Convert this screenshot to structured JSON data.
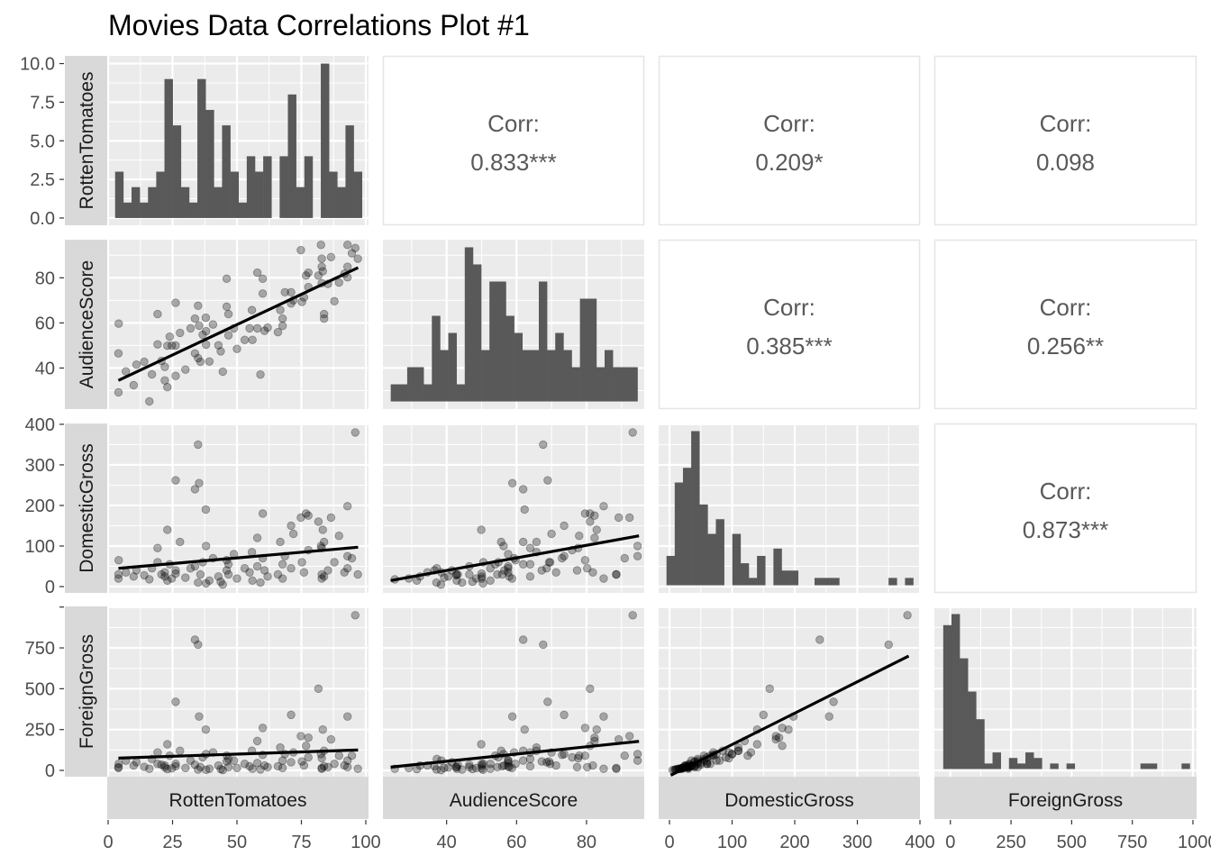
{
  "chart_data": {
    "type": "scatter-matrix",
    "title": "Movies Data Correlations Plot #1",
    "variables": [
      "RottenTomatoes",
      "AudienceScore",
      "DomesticGross",
      "ForeignGross"
    ],
    "axes": {
      "RottenTomatoes": {
        "x_range": [
          -0.35,
          101.05
        ],
        "ticks": [
          0,
          25,
          50,
          75,
          100
        ],
        "tick_labels": [
          "0",
          "25",
          "50",
          "75",
          "100"
        ]
      },
      "AudienceScore": {
        "x_range": [
          21.8,
          96.5
        ],
        "y_range": [
          21.8,
          96.9
        ],
        "ticks": [
          40,
          60,
          80
        ],
        "tick_labels": [
          "40",
          "60",
          "80"
        ]
      },
      "DomesticGross": {
        "x_range": [
          -17.3,
          400
        ],
        "y_range": [
          -15.5,
          402
        ],
        "ticks": [
          0,
          100,
          200,
          300,
          400
        ],
        "tick_labels": [
          "0",
          "100",
          "200",
          "300",
          "400"
        ]
      },
      "ForeignGross": {
        "x_range": [
          -66,
          1015
        ],
        "y_range": [
          -38.6,
          1004
        ],
        "ticks": [
          0,
          250,
          500,
          750,
          1000
        ],
        "tick_labels": [
          "0",
          "250",
          "500",
          "750",
          "1000"
        ],
        "y_tick_labels": [
          "0",
          "250",
          "500",
          "750"
        ]
      }
    },
    "count_axis": {
      "range": [
        -0.47,
        10.5
      ],
      "ticks": [
        0,
        2.5,
        5,
        7.5,
        10
      ],
      "tick_labels": [
        "0.0",
        "2.5",
        "5.0",
        "7.5",
        "10.0"
      ]
    },
    "histograms": [
      {
        "variable": "RottenTomatoes",
        "bin_range": [
          4.3,
          96.9
        ],
        "counts": [
          3,
          1,
          2,
          1,
          2,
          3,
          9,
          6,
          2,
          1,
          9,
          7,
          2,
          6,
          3,
          1,
          4,
          3,
          4,
          0,
          4,
          8,
          2,
          4,
          0,
          10,
          3,
          2,
          6,
          3
        ]
      },
      {
        "variable": "AudienceScore",
        "bin_range": [
          25.2,
          93.4
        ],
        "counts": [
          1,
          1,
          2,
          2,
          1,
          5,
          3,
          4,
          1,
          9,
          8,
          3,
          7,
          7,
          5,
          4,
          3,
          3,
          7,
          3,
          4,
          3,
          2,
          6,
          6,
          2,
          3,
          2,
          2,
          2
        ]
      },
      {
        "variable": "DomesticGross",
        "bin_range": [
          1.8,
          382.7
        ],
        "counts": [
          4,
          14,
          16,
          21,
          11,
          7,
          9,
          0,
          7,
          3,
          1,
          4,
          0,
          5,
          2,
          2,
          0,
          0,
          1,
          1,
          1,
          0,
          0,
          0,
          0,
          0,
          0,
          1,
          0,
          1
        ]
      },
      {
        "variable": "ForeignGross",
        "bin_range": [
          -12.6,
          970
        ],
        "counts": [
          26,
          28,
          20,
          14,
          9,
          1,
          3,
          0,
          2,
          1,
          3,
          2,
          0,
          1,
          0,
          1,
          0,
          0,
          0,
          0,
          0,
          0,
          0,
          0,
          1,
          1,
          0,
          0,
          0,
          1
        ]
      }
    ],
    "correlations": [
      {
        "row": 0,
        "col": 1,
        "label": "Corr:",
        "value": "0.833***"
      },
      {
        "row": 0,
        "col": 2,
        "label": "Corr:",
        "value": "0.209*"
      },
      {
        "row": 0,
        "col": 3,
        "label": "Corr:",
        "value": "0.098"
      },
      {
        "row": 1,
        "col": 2,
        "label": "Corr:",
        "value": "0.385***"
      },
      {
        "row": 1,
        "col": 3,
        "label": "Corr:",
        "value": "0.256**"
      },
      {
        "row": 2,
        "col": 3,
        "label": "Corr:",
        "value": "0.873***"
      }
    ],
    "fits": [
      {
        "x": "RottenTomatoes",
        "y": "AudienceScore",
        "from": [
          4,
          34.5
        ],
        "to": [
          97,
          84.5
        ]
      },
      {
        "x": "RottenTomatoes",
        "y": "DomesticGross",
        "from": [
          4,
          45
        ],
        "to": [
          97,
          97
        ]
      },
      {
        "x": "RottenTomatoes",
        "y": "ForeignGross",
        "from": [
          4,
          75
        ],
        "to": [
          97,
          125
        ]
      },
      {
        "x": "AudienceScore",
        "y": "DomesticGross",
        "from": [
          24,
          15
        ],
        "to": [
          95,
          125
        ]
      },
      {
        "x": "AudienceScore",
        "y": "ForeignGross",
        "from": [
          24,
          20
        ],
        "to": [
          95,
          178
        ]
      },
      {
        "x": "DomesticGross",
        "y": "ForeignGross",
        "from": [
          2,
          -30
        ],
        "to": [
          382,
          700
        ]
      }
    ],
    "points": {
      "columns": [
        "RottenTomatoes",
        "AudienceScore",
        "DomesticGross",
        "ForeignGross"
      ],
      "rows": [
        [
          4.1,
          59.7,
          65,
          40
        ],
        [
          4,
          46.5,
          30,
          20
        ],
        [
          4,
          29.2,
          20,
          15
        ],
        [
          6.9,
          38.5,
          35,
          60
        ],
        [
          9.9,
          32.4,
          25,
          30
        ],
        [
          11,
          41.5,
          40,
          50
        ],
        [
          14,
          42.8,
          28,
          22
        ],
        [
          16,
          25.2,
          18,
          10
        ],
        [
          17,
          37.2,
          45,
          70
        ],
        [
          19.2,
          63.9,
          95,
          110
        ],
        [
          19.2,
          50.5,
          60,
          40
        ],
        [
          20.7,
          43.2,
          30,
          35
        ],
        [
          22,
          40.5,
          25,
          18
        ],
        [
          22,
          34.5,
          35,
          30
        ],
        [
          23,
          31.5,
          15,
          8
        ],
        [
          23,
          49.9,
          140,
          160
        ],
        [
          23.9,
          53.9,
          55,
          90
        ],
        [
          24.7,
          50,
          20,
          12
        ],
        [
          26.2,
          68.9,
          262,
          420
        ],
        [
          26.2,
          36.5,
          40,
          25
        ],
        [
          26.2,
          50,
          32,
          40
        ],
        [
          27.9,
          55.6,
          110,
          120
        ],
        [
          30,
          39.3,
          22,
          15
        ],
        [
          32,
          57.6,
          45,
          60
        ],
        [
          33.7,
          61.9,
          240,
          800
        ],
        [
          33.7,
          46.5,
          50,
          35
        ],
        [
          34.9,
          67.6,
          350,
          770
        ],
        [
          34.9,
          44.4,
          10,
          5
        ],
        [
          35.8,
          42.8,
          30,
          20
        ],
        [
          35.3,
          58.8,
          255,
          330
        ],
        [
          36.7,
          54.8,
          60,
          80
        ],
        [
          37.9,
          62.3,
          190,
          250
        ],
        [
          38,
          56.3,
          100,
          100
        ],
        [
          38,
          50.4,
          8,
          4
        ],
        [
          39.3,
          42.9,
          15,
          10
        ],
        [
          40.7,
          59.3,
          70,
          110
        ],
        [
          42.8,
          50.1,
          25,
          30
        ],
        [
          43.7,
          47.4,
          12,
          8
        ],
        [
          44.5,
          38.4,
          5,
          2
        ],
        [
          46,
          79.6,
          65,
          90
        ],
        [
          46,
          67.2,
          40,
          55
        ],
        [
          46.7,
          63.9,
          55,
          70
        ],
        [
          46.7,
          54.5,
          30,
          20
        ],
        [
          48.8,
          57.6,
          80,
          60
        ],
        [
          50,
          48.5,
          20,
          15
        ],
        [
          53,
          52.5,
          45,
          40
        ],
        [
          54.9,
          57.6,
          35,
          25
        ],
        [
          55.8,
          65.7,
          85,
          120
        ],
        [
          56,
          52.5,
          15,
          10
        ],
        [
          57.9,
          82.3,
          120,
          180
        ],
        [
          57.9,
          57.6,
          50,
          45
        ],
        [
          59.1,
          37.1,
          10,
          6
        ],
        [
          60,
          79.6,
          180,
          260
        ],
        [
          60,
          73,
          70,
          95
        ],
        [
          60.7,
          56.5,
          40,
          30
        ],
        [
          61.9,
          57.9,
          25,
          20
        ],
        [
          65.9,
          55.9,
          30,
          25
        ],
        [
          66.8,
          65.7,
          110,
          140
        ],
        [
          67.7,
          61.9,
          55,
          60
        ],
        [
          67.7,
          58.7,
          20,
          15
        ],
        [
          68.6,
          73.6,
          75,
          100
        ],
        [
          71,
          73.6,
          150,
          340
        ],
        [
          71,
          68.6,
          45,
          50
        ],
        [
          71.9,
          70,
          130,
          110
        ],
        [
          74.8,
          92.3,
          170,
          210
        ],
        [
          75.2,
          69.3,
          60,
          55
        ],
        [
          76,
          71.3,
          35,
          30
        ],
        [
          76.8,
          81,
          180,
          150
        ],
        [
          77.7,
          82.3,
          175,
          200
        ],
        [
          77.7,
          75.9,
          90,
          80
        ],
        [
          81.6,
          81,
          160,
          500
        ],
        [
          82.6,
          94.6,
          100,
          100
        ],
        [
          82.9,
          88.5,
          30,
          15
        ],
        [
          83.3,
          82.9,
          140,
          250
        ],
        [
          82.9,
          84.9,
          20,
          10
        ],
        [
          82.9,
          77.6,
          95,
          75
        ],
        [
          83.8,
          63.9,
          25,
          25
        ],
        [
          83.8,
          61.9,
          110,
          120
        ],
        [
          85.3,
          77.3,
          40,
          20
        ],
        [
          86.5,
          89.2,
          170,
          190
        ],
        [
          87.8,
          69.6,
          60,
          40
        ],
        [
          89.6,
          77.9,
          125,
          90
        ],
        [
          91.7,
          81.8,
          35,
          30
        ],
        [
          92.9,
          94.6,
          75,
          60
        ],
        [
          92.9,
          84.9,
          198,
          330
        ],
        [
          92.9,
          80.2,
          45,
          20
        ],
        [
          94.6,
          90.9,
          70,
          90
        ],
        [
          95.9,
          93.2,
          380,
          950
        ],
        [
          96.9,
          88.5,
          30,
          10
        ]
      ]
    },
    "grid": true,
    "colors": {
      "panel": "#EBEBEB",
      "grid": "#FFFFFF",
      "strip": "#D9D9D9",
      "bar": "#595959",
      "point": "#000000",
      "fit": "#000000",
      "corr_text": "#595959"
    }
  }
}
